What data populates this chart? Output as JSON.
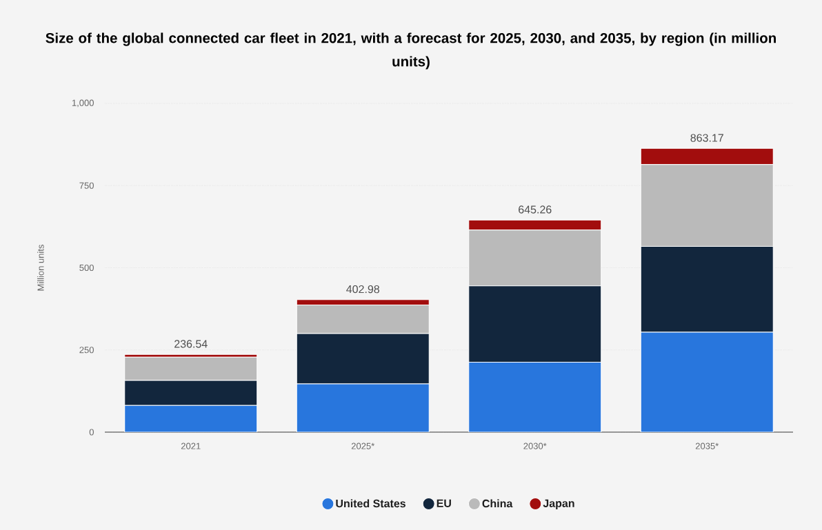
{
  "chart_data": {
    "type": "bar",
    "title": "Size of the global connected car fleet in 2021, with a forecast for 2025, 2030, and 2035, by region (in million units)",
    "categories": [
      "2021",
      "2025*",
      "2030*",
      "2035*"
    ],
    "series": [
      {
        "name": "United States",
        "color": "#2876dd",
        "values": [
          81,
          147,
          213,
          304
        ]
      },
      {
        "name": "EU",
        "color": "#12263d",
        "values": [
          76,
          153,
          232,
          261
        ]
      },
      {
        "name": "China",
        "color": "#bababa",
        "values": [
          71,
          87,
          170,
          249
        ]
      },
      {
        "name": "Japan",
        "color": "#a20d0d",
        "values": [
          8.54,
          15.98,
          30.26,
          49.17
        ]
      }
    ],
    "stacked": true,
    "totals": [
      "236.54",
      "402.98",
      "645.26",
      "863.17"
    ],
    "ylabel": "Million units",
    "ylim": [
      0,
      1000
    ],
    "yticks": [
      0,
      250,
      500,
      750,
      {
        "value": 1000,
        "label": "1,000"
      }
    ],
    "grid": "y",
    "legend": "bottom"
  }
}
